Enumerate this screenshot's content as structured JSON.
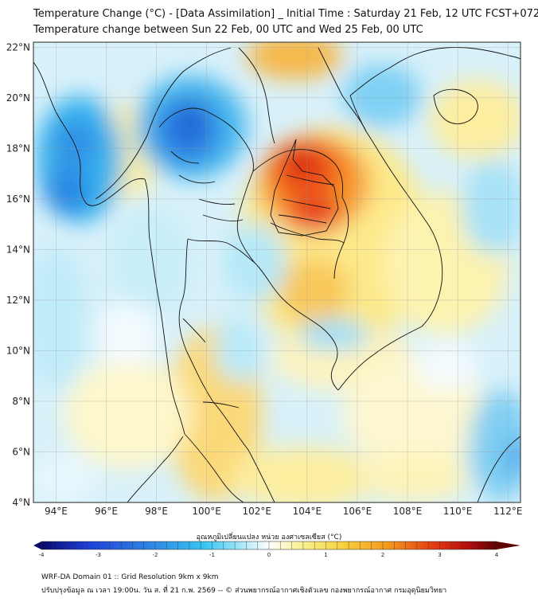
{
  "header": {
    "title_line1": "Temperature Change (°C) - [Data Assimilation] _ Initial Time : Saturday 21 Feb, 12 UTC FCST+072",
    "title_line2": "Temperature change between Sun 22 Feb, 00 UTC and Wed 25 Feb, 00 UTC"
  },
  "map": {
    "lat_labels": [
      "22°N",
      "20°N",
      "18°N",
      "16°N",
      "14°N",
      "12°N",
      "10°N",
      "8°N",
      "6°N",
      "4°N"
    ],
    "lon_labels": [
      "94°E",
      "96°E",
      "98°E",
      "100°E",
      "102°E",
      "104°E",
      "106°E",
      "108°E",
      "110°E",
      "112°E"
    ],
    "lat_values": [
      22,
      20,
      18,
      16,
      14,
      12,
      10,
      8,
      6,
      4
    ],
    "lon_values": [
      94,
      96,
      98,
      100,
      102,
      104,
      106,
      108,
      110,
      112
    ],
    "extent": {
      "lon_min": 93.1,
      "lon_max": 112.5,
      "lat_min": 4,
      "lat_max": 22.2
    },
    "features": [
      {
        "name": "warm-anomaly-northeast-thailand-laos",
        "lon": 103.8,
        "lat": 16.9,
        "value": 3.0
      },
      {
        "name": "warm-anomaly-north-laos",
        "lon": 103.0,
        "lat": 21.8,
        "value": 2.0
      },
      {
        "name": "cold-anomaly-north-thailand",
        "lon": 99.2,
        "lat": 18.4,
        "value": -2.0
      },
      {
        "name": "cold-anomaly-myanmar-coast",
        "lon": 94.5,
        "lat": 17.3,
        "value": -2.2
      },
      {
        "name": "warm-anomaly-malay-peninsula",
        "lon": 100.2,
        "lat": 7.5,
        "value": 1.3
      },
      {
        "name": "cold-anomaly-south-china-sea",
        "lon": 112.2,
        "lat": 6.0,
        "value": -1.5
      }
    ]
  },
  "colorbar": {
    "label": "อุณหภูมิเปลี่ยนแปลง หน่วย องศาเซลเซียส (°C)",
    "ticks": [
      "-4",
      "-3",
      "-2",
      "-1",
      "0",
      "1",
      "2",
      "3",
      "4"
    ],
    "min": -4,
    "max": 4,
    "colors": [
      "#08086b",
      "#1530c8",
      "#2a7ee0",
      "#35c3f0",
      "#a8e6f8",
      "#ffffff",
      "#fbf5a0",
      "#f7d64a",
      "#f5a020",
      "#e84a14",
      "#c80f0f",
      "#6b0303"
    ]
  },
  "footer": {
    "line1": "WRF-DA Domain 01 :: Grid Resolution 9km x 9km",
    "line2": "ปรับปรุงข้อมูล ณ เวลา 19:00น. วัน ส. ที่ 21 ก.พ. 2569 -- © ส่วนพยากรณ์อากาศเชิงตัวเลข กองพยากรณ์อากาศ กรมอุตุนิยมวิทยา"
  }
}
